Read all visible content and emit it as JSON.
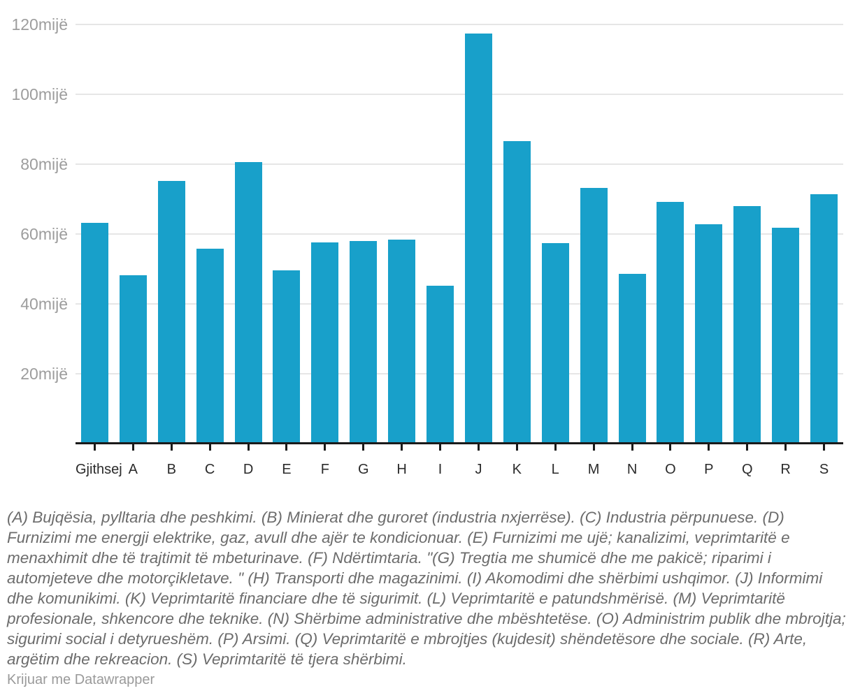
{
  "chart_data": {
    "type": "bar",
    "title": "",
    "xlabel": "",
    "ylabel": "",
    "unit_suffix": "mijë",
    "categories": [
      "Gjithsej",
      "A",
      "B",
      "C",
      "D",
      "E",
      "F",
      "G",
      "H",
      "I",
      "J",
      "K",
      "L",
      "M",
      "N",
      "O",
      "P",
      "Q",
      "R",
      "S"
    ],
    "values": [
      63.2,
      48.2,
      75.2,
      55.8,
      80.6,
      49.6,
      57.6,
      58.0,
      58.4,
      45.2,
      117.4,
      86.6,
      57.4,
      73.2,
      48.6,
      69.2,
      62.8,
      68.0,
      61.8,
      71.4
    ],
    "y_ticks": [
      120,
      100,
      80,
      60,
      40,
      20
    ],
    "y_tick_labels": [
      "120mijë",
      "100mijë",
      "80mijë",
      "60mijë",
      "40mijë",
      "20mijë"
    ],
    "ylim": [
      0,
      127
    ],
    "grid": true,
    "legend_position": "none",
    "bar_color": "#18a0ca",
    "axis_color": "#1a1a1a",
    "gridline_color": "#e6e6e6"
  },
  "footnote": "(A) Bujqësia, pylltaria dhe peshkimi. (B) Minierat dhe guroret (industria nxjerrëse). (C) Industria përpunuese. (D) Furnizimi me energji elektrike, gaz, avull dhe ajër te kondicionuar. (E) Furnizimi me ujë; kanalizimi, veprimtaritë e menaxhimit dhe të trajtimit të mbeturinave. (F) Ndërtimtaria. \"(G) Tregtia me shumicë dhe me pakicë; riparimi i automjeteve dhe motorçikletave. \" (H) Transporti dhe magazinimi. (I) Akomodimi dhe shërbimi ushqimor. (J) Informimi dhe komunikimi. (K) Veprimtaritë financiare dhe të sigurimit. (L) Veprimtaritë e patundshmërisë. (M) Veprimtaritë profesionale, shkencore dhe teknike. (N) Shërbime administrative dhe mbështetëse. (O) Administrim publik dhe mbrojtja; sigurimi social i detyrueshëm. (P) Arsimi. (Q) Veprimtaritë e mbrojtjes (kujdesit) shëndetësore dhe sociale. (R) Arte, argëtim dhe rekreacion. (S) Veprimtaritë të tjera shërbimi.",
  "credit": "Krijuar me Datawrapper"
}
